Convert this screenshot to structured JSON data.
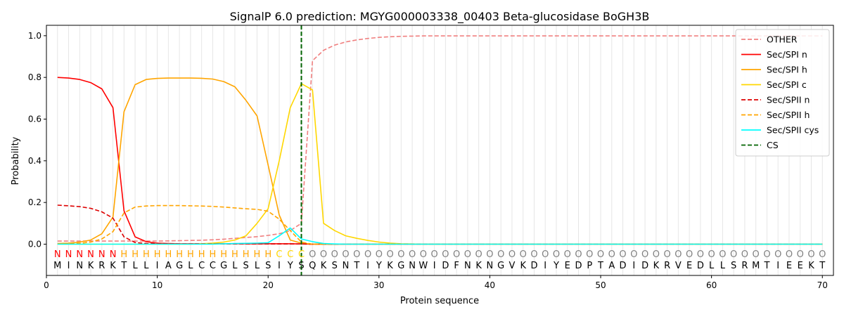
{
  "chart_data": {
    "type": "line",
    "title": "SignalP 6.0 prediction: MGYG000003338_00403 Beta-glucosidase BoGH3B",
    "xlabel": "Protein sequence",
    "ylabel": "Probability",
    "xlim": [
      0,
      71
    ],
    "ylim": [
      -0.15,
      1.05
    ],
    "xticks": [
      0,
      10,
      20,
      30,
      40,
      50,
      60,
      70
    ],
    "yticks": [
      0.0,
      0.2,
      0.4,
      0.6,
      0.8,
      1.0
    ],
    "ytick_labels": [
      "0.0",
      "0.2",
      "0.4",
      "0.6",
      "0.8",
      "1.0"
    ],
    "grid": "vertical lines at every residue",
    "legend_position": "top-right",
    "cleavage_site": 23,
    "sequence": [
      "M",
      "I",
      "N",
      "K",
      "R",
      "K",
      "T",
      "L",
      "L",
      "I",
      "A",
      "G",
      "L",
      "C",
      "C",
      "G",
      "L",
      "S",
      "L",
      "S",
      "I",
      "Y",
      "S",
      "Q",
      "K",
      "S",
      "N",
      "T",
      "I",
      "Y",
      "K",
      "G",
      "N",
      "W",
      "I",
      "D",
      "F",
      "N",
      "K",
      "N",
      "G",
      "V",
      "K",
      "D",
      "I",
      "Y",
      "E",
      "D",
      "P",
      "T",
      "A",
      "D",
      "I",
      "D",
      "K",
      "R",
      "V",
      "E",
      "D",
      "L",
      "L",
      "S",
      "R",
      "M",
      "T",
      "I",
      "E",
      "E",
      "K",
      "T"
    ],
    "labels": [
      "N",
      "N",
      "N",
      "N",
      "N",
      "N",
      "H",
      "H",
      "H",
      "H",
      "H",
      "H",
      "H",
      "H",
      "H",
      "H",
      "H",
      "H",
      "H",
      "H",
      "C",
      "C",
      "C",
      "O",
      "O",
      "O",
      "O",
      "O",
      "O",
      "O",
      "O",
      "O",
      "O",
      "O",
      "O",
      "O",
      "O",
      "O",
      "O",
      "O",
      "O",
      "O",
      "O",
      "O",
      "O",
      "O",
      "O",
      "O",
      "O",
      "O",
      "O",
      "O",
      "O",
      "O",
      "O",
      "O",
      "O",
      "O",
      "O",
      "O",
      "O",
      "O",
      "O",
      "O",
      "O",
      "O",
      "O",
      "O",
      "O",
      "O"
    ],
    "label_colors": {
      "N": "#ff0000",
      "H": "#ffa500",
      "C": "#ffd700",
      "O": "#808080"
    },
    "series": [
      {
        "name": "OTHER",
        "color": "#f08080",
        "dash": "dashed",
        "values": [
          0.015,
          0.015,
          0.015,
          0.015,
          0.015,
          0.015,
          0.015,
          0.015,
          0.015,
          0.015,
          0.016,
          0.017,
          0.018,
          0.019,
          0.021,
          0.024,
          0.028,
          0.032,
          0.036,
          0.042,
          0.05,
          0.065,
          0.1,
          0.88,
          0.93,
          0.955,
          0.97,
          0.98,
          0.987,
          0.992,
          0.995,
          0.997,
          0.998,
          0.999,
          0.999,
          0.999,
          0.999,
          0.999,
          0.999,
          0.999,
          0.999,
          0.999,
          0.999,
          0.999,
          0.999,
          0.999,
          0.999,
          0.999,
          0.999,
          0.999,
          0.999,
          0.999,
          0.999,
          0.999,
          0.999,
          0.999,
          0.999,
          0.999,
          0.999,
          0.999,
          0.999,
          0.999,
          0.999,
          0.999,
          0.999,
          0.999,
          0.999,
          0.999,
          0.999,
          0.999
        ]
      },
      {
        "name": "Sec/SPI n",
        "color": "#ff0000",
        "dash": "solid",
        "values": [
          0.8,
          0.797,
          0.79,
          0.775,
          0.745,
          0.655,
          0.16,
          0.035,
          0.012,
          0.005,
          0.003,
          0.002,
          0.002,
          0.002,
          0.002,
          0.002,
          0.002,
          0.002,
          0.002,
          0.002,
          0.002,
          0.002,
          0.001,
          0,
          0,
          0,
          0,
          0,
          0,
          0,
          0,
          0,
          0,
          0,
          0,
          0,
          0,
          0,
          0,
          0,
          0,
          0,
          0,
          0,
          0,
          0,
          0,
          0,
          0,
          0,
          0,
          0,
          0,
          0,
          0,
          0,
          0,
          0,
          0,
          0,
          0,
          0,
          0,
          0,
          0,
          0,
          0,
          0,
          0,
          0
        ]
      },
      {
        "name": "Sec/SPI h",
        "color": "#ffa500",
        "dash": "solid",
        "values": [
          0.003,
          0.005,
          0.01,
          0.02,
          0.05,
          0.13,
          0.635,
          0.765,
          0.79,
          0.795,
          0.797,
          0.797,
          0.797,
          0.796,
          0.792,
          0.78,
          0.755,
          0.69,
          0.615,
          0.38,
          0.14,
          0.02,
          0.005,
          0,
          0,
          0,
          0,
          0,
          0,
          0,
          0,
          0,
          0,
          0,
          0,
          0,
          0,
          0,
          0,
          0,
          0,
          0,
          0,
          0,
          0,
          0,
          0,
          0,
          0,
          0,
          0,
          0,
          0,
          0,
          0,
          0,
          0,
          0,
          0,
          0,
          0,
          0,
          0,
          0,
          0,
          0,
          0,
          0,
          0,
          0
        ]
      },
      {
        "name": "Sec/SPI c",
        "color": "#ffd700",
        "dash": "solid",
        "values": [
          0,
          0,
          0,
          0,
          0,
          0,
          0,
          0,
          0,
          0,
          0,
          0,
          0,
          0.002,
          0.005,
          0.01,
          0.02,
          0.04,
          0.1,
          0.17,
          0.4,
          0.655,
          0.77,
          0.74,
          0.1,
          0.065,
          0.04,
          0.028,
          0.018,
          0.01,
          0.005,
          0.002,
          0.001,
          0,
          0,
          0,
          0,
          0,
          0,
          0,
          0,
          0,
          0,
          0,
          0,
          0,
          0,
          0,
          0,
          0,
          0,
          0,
          0,
          0,
          0,
          0,
          0,
          0,
          0,
          0,
          0,
          0,
          0,
          0,
          0,
          0,
          0,
          0,
          0,
          0
        ]
      },
      {
        "name": "Sec/SPII n",
        "color": "#dd0000",
        "dash": "dashed",
        "values": [
          0.187,
          0.184,
          0.18,
          0.172,
          0.155,
          0.125,
          0.035,
          0.008,
          0.003,
          0.002,
          0.001,
          0.001,
          0.001,
          0.001,
          0.001,
          0.001,
          0.001,
          0.001,
          0.001,
          0.001,
          0.001,
          0.001,
          0.001,
          0,
          0,
          0,
          0,
          0,
          0,
          0,
          0,
          0,
          0,
          0,
          0,
          0,
          0,
          0,
          0,
          0,
          0,
          0,
          0,
          0,
          0,
          0,
          0,
          0,
          0,
          0,
          0,
          0,
          0,
          0,
          0,
          0,
          0,
          0,
          0,
          0,
          0,
          0,
          0,
          0,
          0,
          0,
          0,
          0,
          0,
          0
        ]
      },
      {
        "name": "Sec/SPII h",
        "color": "#ffa500",
        "dash": "dashed",
        "values": [
          0.001,
          0.002,
          0.004,
          0.01,
          0.025,
          0.06,
          0.15,
          0.178,
          0.183,
          0.185,
          0.185,
          0.185,
          0.184,
          0.183,
          0.181,
          0.178,
          0.174,
          0.17,
          0.167,
          0.158,
          0.12,
          0.065,
          0.01,
          0,
          0,
          0,
          0,
          0,
          0,
          0,
          0,
          0,
          0,
          0,
          0,
          0,
          0,
          0,
          0,
          0,
          0,
          0,
          0,
          0,
          0,
          0,
          0,
          0,
          0,
          0,
          0,
          0,
          0,
          0,
          0,
          0,
          0,
          0,
          0,
          0,
          0,
          0,
          0,
          0,
          0,
          0,
          0,
          0,
          0,
          0
        ]
      },
      {
        "name": "Sec/SPII cys",
        "color": "#00ffff",
        "dash": "solid",
        "values": [
          0,
          0,
          0,
          0,
          0,
          0,
          0,
          0,
          0,
          0,
          0,
          0,
          0,
          0,
          0,
          0.002,
          0.003,
          0.004,
          0.005,
          0.007,
          0.04,
          0.078,
          0.025,
          0.012,
          0.003,
          0.001,
          0,
          0,
          0,
          0,
          0,
          0,
          0,
          0,
          0,
          0,
          0,
          0,
          0,
          0,
          0,
          0,
          0,
          0,
          0,
          0,
          0,
          0,
          0,
          0,
          0,
          0,
          0,
          0,
          0,
          0,
          0,
          0,
          0,
          0,
          0,
          0,
          0,
          0,
          0,
          0,
          0,
          0,
          0,
          0
        ]
      },
      {
        "name": "CS",
        "color": "#006400",
        "dash": "dashed",
        "kind": "vline"
      }
    ]
  }
}
